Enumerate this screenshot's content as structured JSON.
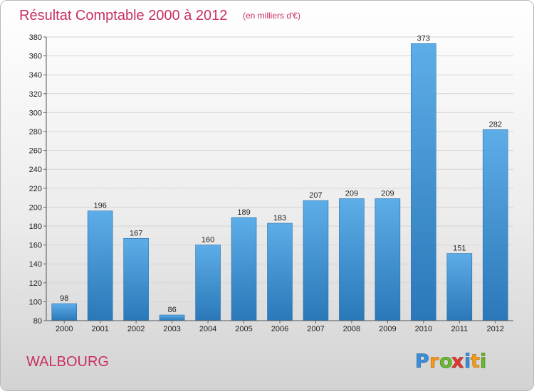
{
  "chart_data": {
    "type": "bar",
    "title": "Résultat Comptable 2000 à 2012",
    "subtitle": "(en milliers d'€)",
    "categories": [
      "2000",
      "2001",
      "2002",
      "2003",
      "2004",
      "2005",
      "2006",
      "2007",
      "2008",
      "2009",
      "2010",
      "2011",
      "2012"
    ],
    "values": [
      98,
      196,
      167,
      86,
      160,
      189,
      183,
      207,
      209,
      209,
      373,
      151,
      282
    ],
    "ylim": [
      80,
      380
    ],
    "yticks": [
      80,
      100,
      120,
      140,
      160,
      180,
      200,
      220,
      240,
      260,
      280,
      300,
      320,
      340,
      360,
      380
    ],
    "grid": true,
    "colors": {
      "bar_light": "#5dade8",
      "bar_dark": "#2a78b8",
      "title": "#c8305e",
      "place": "#c8305e",
      "text": "#222222"
    }
  },
  "footer": {
    "place": "WALBOURG",
    "logo": "Proxiti"
  }
}
